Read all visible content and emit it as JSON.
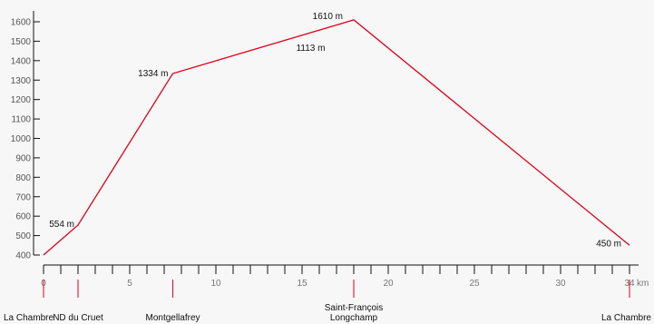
{
  "chart_data": {
    "type": "line",
    "y_axis": {
      "ylim": [
        400,
        1600
      ],
      "ticks": [
        400,
        500,
        600,
        700,
        800,
        900,
        1000,
        1100,
        1200,
        1300,
        1400,
        1500,
        1600
      ],
      "tick_labels": [
        "400",
        "500",
        "600",
        "700",
        "800",
        "900",
        "1000",
        "1100",
        "1200",
        "1300",
        "1400",
        "1500",
        "1600"
      ]
    },
    "x_axis": {
      "xlim": [
        0,
        34
      ],
      "minor_tick_step": 1,
      "major_ticks": [
        0,
        5,
        10,
        15,
        20,
        25,
        30,
        34
      ],
      "tick_labels": [
        "0",
        "5",
        "10",
        "15",
        "20",
        "25",
        "30",
        "34"
      ],
      "unit": "km"
    },
    "series": [
      {
        "color": "#e2001a",
        "x": [
          0,
          2,
          7.5,
          18,
          34
        ],
        "y": [
          400,
          554,
          1334,
          1610,
          450
        ]
      }
    ],
    "elevation_labels": [
      {
        "x": 2,
        "y": 554,
        "text": "554 m"
      },
      {
        "x": 7.5,
        "y": 1334,
        "text": "1334 m"
      },
      {
        "x": 18,
        "y": 1610,
        "text": "1610 m"
      },
      {
        "x": 15.5,
        "y": 1470,
        "text": "1113 m"
      },
      {
        "x": 34,
        "y": 450,
        "text": "450 m"
      }
    ],
    "locations": [
      {
        "x": 0,
        "lines": [
          "La Chambre"
        ]
      },
      {
        "x": 2,
        "lines": [
          "ND du Cruet"
        ]
      },
      {
        "x": 7.5,
        "lines": [
          "Montgellafrey"
        ]
      },
      {
        "x": 18,
        "lines": [
          "Saint-François",
          "Longchamp"
        ]
      },
      {
        "x": 34,
        "lines": [
          "La Chambre"
        ]
      }
    ],
    "colors": {
      "profile": "#e2001a",
      "location_marker": "#e2001a",
      "axis": "#111111"
    }
  }
}
